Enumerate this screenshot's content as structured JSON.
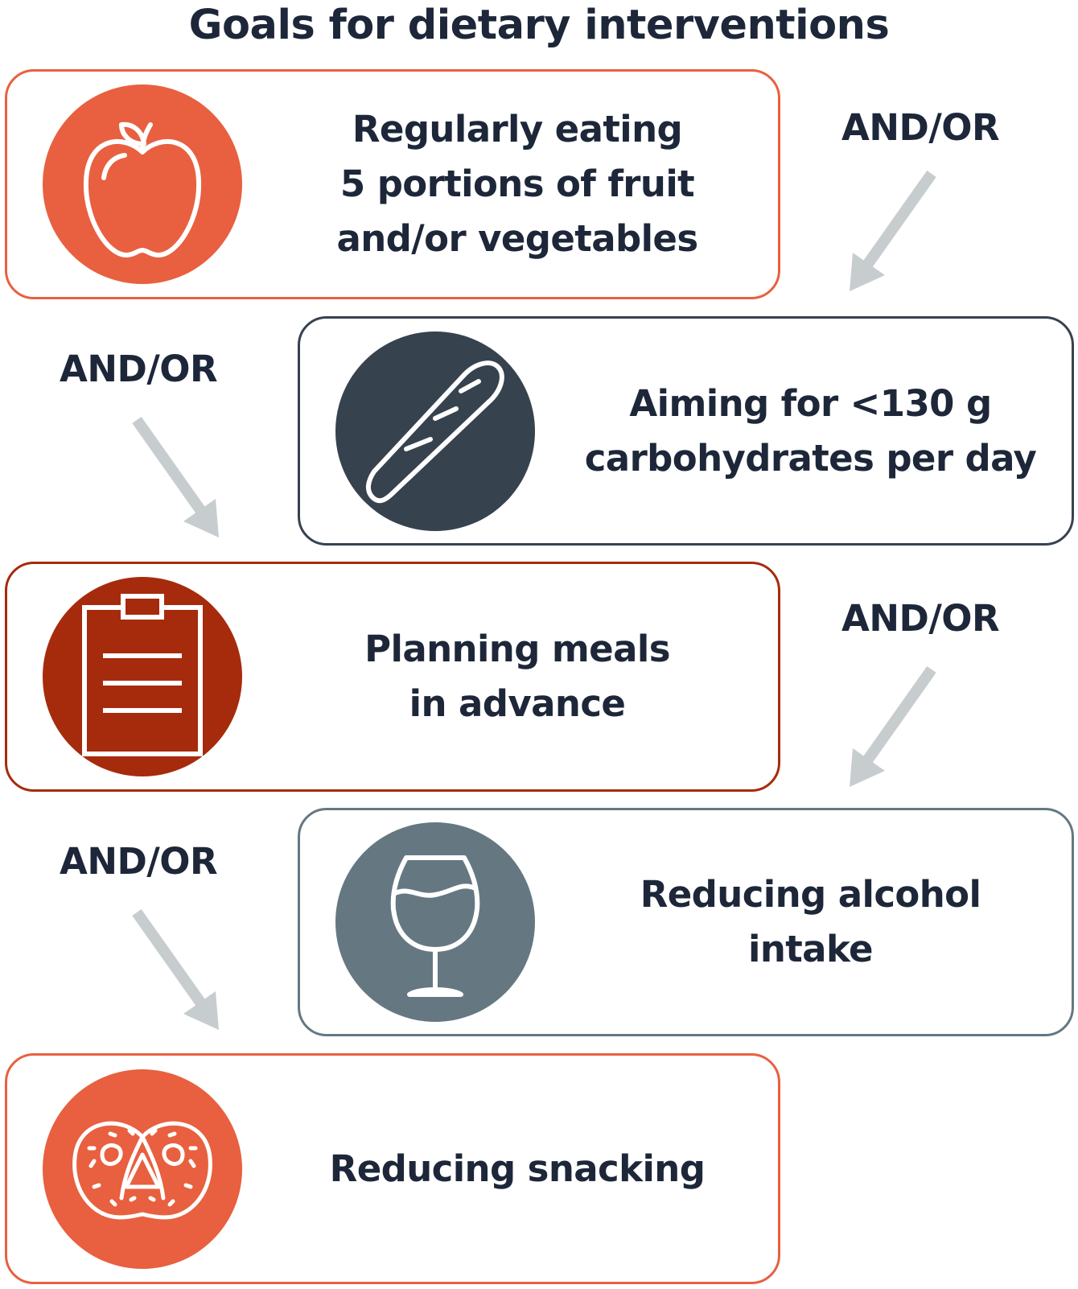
{
  "title": "Goals for dietary interventions",
  "colors": {
    "orange": "#e8603f",
    "dark_slate": "#37424f",
    "rust": "#a62b0c",
    "gray_blue": "#657882",
    "arrow_gray": "#c7cdcf",
    "text": "#1d2739"
  },
  "goals": [
    {
      "label": "Regularly eating\n5 portions of fruit\nand/or vegetables",
      "icon": "apple-icon",
      "color": "#e8603f"
    },
    {
      "label": "Aiming for <130 g\ncarbohydrates per day",
      "icon": "bread-icon",
      "color": "#37424f"
    },
    {
      "label": "Planning meals\nin advance",
      "icon": "clipboard-icon",
      "color": "#a62b0c"
    },
    {
      "label": "Reducing alcohol\nintake",
      "icon": "wine-glass-icon",
      "color": "#657882"
    },
    {
      "label": "Reducing snacking",
      "icon": "pretzel-icon",
      "color": "#e8603f"
    }
  ],
  "connectors": [
    {
      "label": "AND/OR"
    },
    {
      "label": "AND/OR"
    },
    {
      "label": "AND/OR"
    },
    {
      "label": "AND/OR"
    }
  ]
}
